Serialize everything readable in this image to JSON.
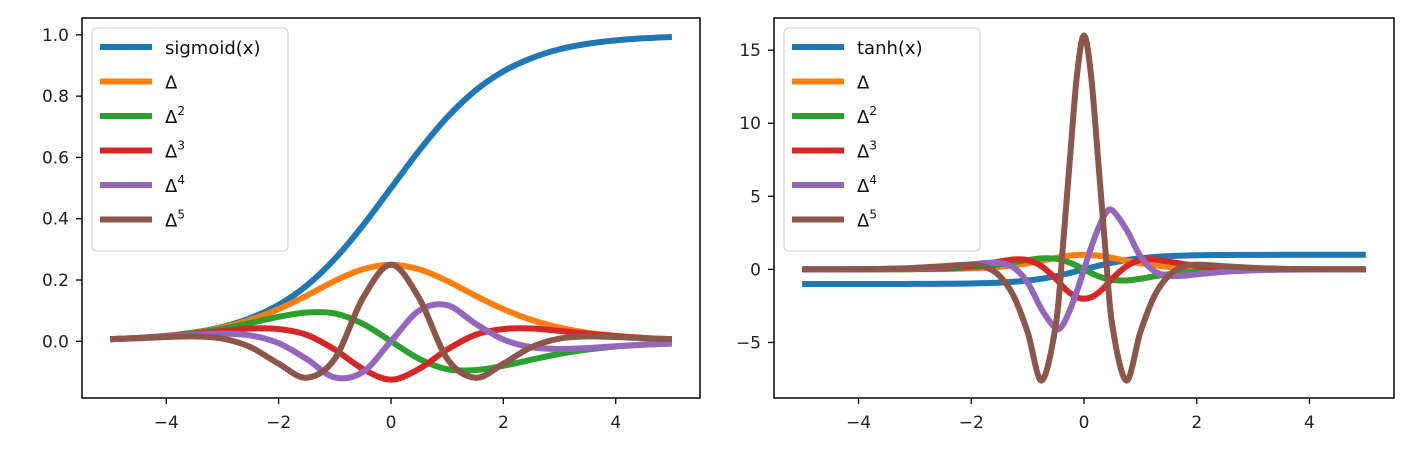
{
  "chart_data": [
    {
      "type": "line",
      "title": "",
      "xlabel": "",
      "ylabel": "",
      "xlim": [
        -5.5,
        5.5
      ],
      "ylim": [
        -0.185,
        1.055
      ],
      "x_ticks": [
        -4,
        -2,
        0,
        2,
        4
      ],
      "x_tick_labels": [
        "−4",
        "−2",
        "0",
        "2",
        "4"
      ],
      "y_ticks": [
        0.0,
        0.2,
        0.4,
        0.6,
        0.8,
        1.0
      ],
      "y_tick_labels": [
        "0.0",
        "0.2",
        "0.4",
        "0.6",
        "0.8",
        "1.0"
      ],
      "grid": false,
      "legend_position": "top-left",
      "x": [
        -5,
        -4.5,
        -4,
        -3.5,
        -3,
        -2.5,
        -2,
        -1.5,
        -1,
        -0.5,
        0,
        0.5,
        1,
        1.5,
        2,
        2.5,
        3,
        3.5,
        4,
        4.5,
        5
      ],
      "series": [
        {
          "name": "sigmoid(x)",
          "label_base": "sigmoid(x)",
          "label_sup": "",
          "color": "#1f77b4",
          "values": [
            0.007,
            0.011,
            0.018,
            0.029,
            0.047,
            0.076,
            0.119,
            0.182,
            0.269,
            0.378,
            0.5,
            0.622,
            0.731,
            0.818,
            0.881,
            0.924,
            0.953,
            0.971,
            0.982,
            0.989,
            0.993
          ]
        },
        {
          "name": "Δ",
          "label_base": "Δ",
          "label_sup": "",
          "color": "#ff7f0e",
          "values": [
            0.007,
            0.011,
            0.018,
            0.028,
            0.045,
            0.07,
            0.105,
            0.149,
            0.197,
            0.235,
            0.25,
            0.235,
            0.197,
            0.149,
            0.105,
            0.07,
            0.045,
            0.028,
            0.018,
            0.011,
            0.007
          ]
        },
        {
          "name": "Δ²",
          "label_base": "Δ",
          "label_sup": "2",
          "color": "#2ca02c",
          "values": [
            0.007,
            0.011,
            0.017,
            0.027,
            0.041,
            0.06,
            0.08,
            0.094,
            0.091,
            0.057,
            0.0,
            -0.057,
            -0.091,
            -0.094,
            -0.08,
            -0.06,
            -0.041,
            -0.027,
            -0.017,
            -0.011,
            -0.007
          ]
        },
        {
          "name": "Δ³",
          "label_base": "Δ",
          "label_sup": "3",
          "color": "#d62728",
          "values": [
            0.007,
            0.011,
            0.017,
            0.025,
            0.034,
            0.042,
            0.04,
            0.021,
            -0.027,
            -0.09,
            -0.125,
            -0.09,
            -0.027,
            0.021,
            0.04,
            0.042,
            0.034,
            0.025,
            0.017,
            0.011,
            0.007
          ]
        },
        {
          "name": "Δ⁴",
          "label_base": "Δ",
          "label_sup": "4",
          "color": "#9467bd",
          "values": [
            0.007,
            0.011,
            0.016,
            0.022,
            0.025,
            0.019,
            -0.006,
            -0.058,
            -0.118,
            -0.1,
            0.0,
            0.1,
            0.118,
            0.058,
            0.006,
            -0.019,
            -0.025,
            -0.022,
            -0.016,
            -0.011,
            -0.007
          ]
        },
        {
          "name": "Δ⁵",
          "label_base": "Δ",
          "label_sup": "5",
          "color": "#8c564b",
          "values": [
            0.007,
            0.01,
            0.014,
            0.016,
            0.009,
            -0.019,
            -0.073,
            -0.119,
            -0.057,
            0.141,
            0.25,
            0.141,
            -0.057,
            -0.119,
            -0.073,
            -0.019,
            0.009,
            0.016,
            0.014,
            0.01,
            0.007
          ]
        }
      ]
    },
    {
      "type": "line",
      "title": "",
      "xlabel": "",
      "ylabel": "",
      "xlim": [
        -5.5,
        5.5
      ],
      "ylim": [
        -8.8,
        17.2
      ],
      "x_ticks": [
        -4,
        -2,
        0,
        2,
        4
      ],
      "x_tick_labels": [
        "−4",
        "−2",
        "0",
        "2",
        "4"
      ],
      "y_ticks": [
        -5,
        0,
        5,
        10,
        15
      ],
      "y_tick_labels": [
        "−5",
        "0",
        "5",
        "10",
        "15"
      ],
      "grid": false,
      "legend_position": "top-left",
      "x": [
        -5,
        -4.5,
        -4,
        -3.5,
        -3,
        -2.5,
        -2,
        -1.75,
        -1.5,
        -1.25,
        -1,
        -0.75,
        -0.5,
        -0.375,
        -0.25,
        -0.125,
        0,
        0.125,
        0.25,
        0.375,
        0.5,
        0.75,
        1,
        1.25,
        1.5,
        1.75,
        2,
        2.5,
        3,
        3.5,
        4,
        4.5,
        5
      ],
      "series": [
        {
          "name": "tanh(x)",
          "label_base": "tanh(x)",
          "label_sup": "",
          "color": "#1f77b4",
          "values": [
            -1.0,
            -1.0,
            -0.999,
            -0.998,
            -0.995,
            -0.987,
            -0.964,
            -0.941,
            -0.905,
            -0.848,
            -0.762,
            -0.635,
            -0.462,
            -0.358,
            -0.245,
            -0.124,
            0.0,
            0.124,
            0.245,
            0.358,
            0.462,
            0.635,
            0.762,
            0.848,
            0.905,
            0.941,
            0.964,
            0.987,
            0.995,
            0.998,
            0.999,
            1.0,
            1.0
          ]
        },
        {
          "name": "Δ",
          "label_base": "Δ",
          "label_sup": "",
          "color": "#ff7f0e",
          "values": [
            0.0,
            0.0,
            0.001,
            0.004,
            0.01,
            0.026,
            0.071,
            0.115,
            0.181,
            0.281,
            0.42,
            0.597,
            0.786,
            0.872,
            0.94,
            0.985,
            1.0,
            0.985,
            0.94,
            0.872,
            0.786,
            0.597,
            0.42,
            0.281,
            0.181,
            0.115,
            0.071,
            0.026,
            0.01,
            0.004,
            0.001,
            0.0,
            0.0
          ]
        },
        {
          "name": "Δ²",
          "label_base": "Δ",
          "label_sup": "2",
          "color": "#2ca02c",
          "values": [
            0.0,
            0.001,
            0.003,
            0.007,
            0.02,
            0.052,
            0.136,
            0.216,
            0.328,
            0.476,
            0.64,
            0.758,
            0.727,
            0.624,
            0.461,
            0.244,
            0.0,
            -0.244,
            -0.461,
            -0.624,
            -0.727,
            -0.758,
            -0.64,
            -0.476,
            -0.328,
            -0.216,
            -0.136,
            -0.052,
            -0.02,
            -0.007,
            -0.003,
            -0.001,
            0.0
          ]
        },
        {
          "name": "Δ³",
          "label_base": "Δ",
          "label_sup": "3",
          "color": "#d62728",
          "values": [
            0.0,
            0.001,
            0.005,
            0.014,
            0.039,
            0.099,
            0.251,
            0.379,
            0.535,
            0.679,
            0.639,
            0.206,
            -0.634,
            -1.175,
            -1.616,
            -1.909,
            -2.0,
            -1.909,
            -1.616,
            -1.175,
            -0.634,
            0.206,
            0.639,
            0.679,
            0.535,
            0.379,
            0.251,
            0.099,
            0.039,
            0.014,
            0.005,
            0.001,
            0.0
          ]
        },
        {
          "name": "Δ⁴",
          "label_base": "Δ",
          "label_sup": "4",
          "color": "#9467bd",
          "values": [
            0.0,
            0.003,
            0.011,
            0.025,
            0.067,
            0.161,
            0.342,
            0.436,
            0.436,
            0.126,
            -0.9,
            -2.742,
            -4.042,
            -3.786,
            -2.773,
            -1.489,
            0.0,
            1.489,
            2.773,
            3.786,
            4.042,
            2.742,
            0.9,
            -0.126,
            -0.436,
            -0.436,
            -0.342,
            -0.161,
            -0.067,
            -0.025,
            -0.011,
            -0.003,
            0.0
          ]
        },
        {
          "name": "Δ⁵",
          "label_base": "Δ",
          "label_sup": "5",
          "color": "#8c564b",
          "values": [
            0.0,
            0.005,
            0.018,
            0.044,
            0.107,
            0.213,
            0.328,
            0.156,
            -0.435,
            -1.814,
            -4.3,
            -7.6,
            -3.77,
            1.55,
            7.54,
            13.28,
            16.0,
            13.28,
            7.54,
            1.55,
            -3.77,
            -7.6,
            -4.3,
            -1.814,
            -0.435,
            0.156,
            0.328,
            0.213,
            0.107,
            0.044,
            0.018,
            0.005,
            0.0
          ]
        }
      ]
    }
  ]
}
